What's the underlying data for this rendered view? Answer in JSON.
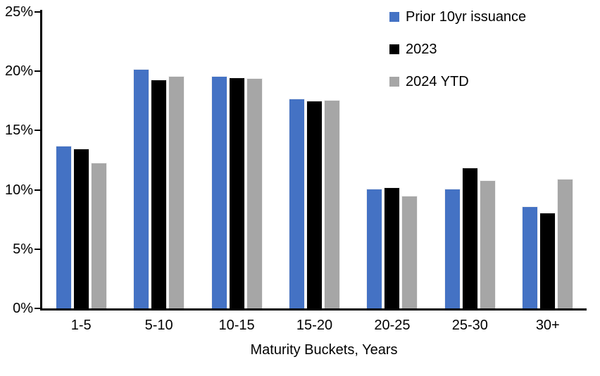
{
  "chart_data": {
    "type": "bar",
    "title": "",
    "xlabel": "Maturity Buckets, Years",
    "ylabel": "",
    "categories": [
      "1-5",
      "5-10",
      "10-15",
      "15-20",
      "20-25",
      "25-30",
      "30+"
    ],
    "series": [
      {
        "name": "Prior 10yr issuance",
        "color": "#4472C4",
        "values": [
          13.7,
          20.2,
          19.6,
          17.7,
          10.1,
          10.1,
          8.6
        ]
      },
      {
        "name": "2023",
        "color": "#000000",
        "values": [
          13.5,
          19.3,
          19.5,
          17.5,
          10.2,
          11.9,
          8.1
        ]
      },
      {
        "name": "2024 YTD",
        "color": "#A6A6A6",
        "values": [
          12.3,
          19.6,
          19.4,
          17.6,
          9.5,
          10.8,
          10.9
        ]
      }
    ],
    "ylim": [
      0,
      25
    ],
    "ytick_step": 5,
    "ytick_labels": [
      "0%",
      "5%",
      "10%",
      "15%",
      "20%",
      "25%"
    ],
    "legend_position": "top-right",
    "grid": false,
    "axis_color": "#000000",
    "background_color": "#FFFFFF"
  }
}
